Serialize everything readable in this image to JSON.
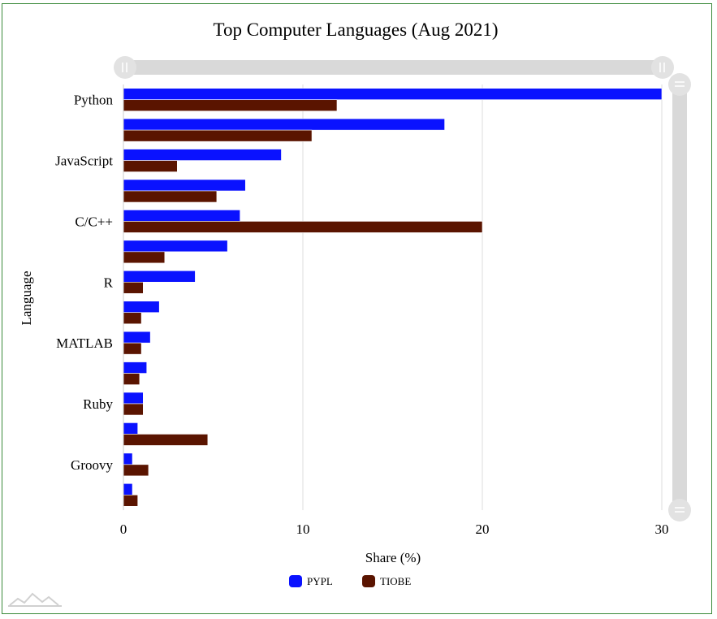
{
  "chart_data": {
    "type": "bar",
    "orientation": "horizontal",
    "title": "Top Computer Languages (Aug 2021)",
    "xlabel": "Share (%)",
    "ylabel": "Language",
    "xlim": [
      0,
      30
    ],
    "x_ticks": [
      0,
      10,
      20,
      30
    ],
    "grid": true,
    "legend_position": "bottom",
    "categories": [
      "Python",
      "",
      "JavaScript",
      "",
      "C/C++",
      "",
      "R",
      "",
      "MATLAB",
      "",
      "Ruby",
      "",
      "Groovy",
      ""
    ],
    "series": [
      {
        "name": "PYPL",
        "color": "#0a12ff",
        "values": [
          30.0,
          17.9,
          8.8,
          6.8,
          6.5,
          5.8,
          4.0,
          2.0,
          1.5,
          1.3,
          1.1,
          0.8,
          0.5,
          0.5
        ]
      },
      {
        "name": "TIOBE",
        "color": "#5a1400",
        "values": [
          11.9,
          10.5,
          3.0,
          5.2,
          20.0,
          2.3,
          1.1,
          1.0,
          1.0,
          0.9,
          1.1,
          4.7,
          1.4,
          0.8
        ]
      }
    ]
  },
  "colors": {
    "scrollbar": "#d9d9d9",
    "gridline": "#dddddd",
    "frame_border": "#3a8a3a"
  }
}
